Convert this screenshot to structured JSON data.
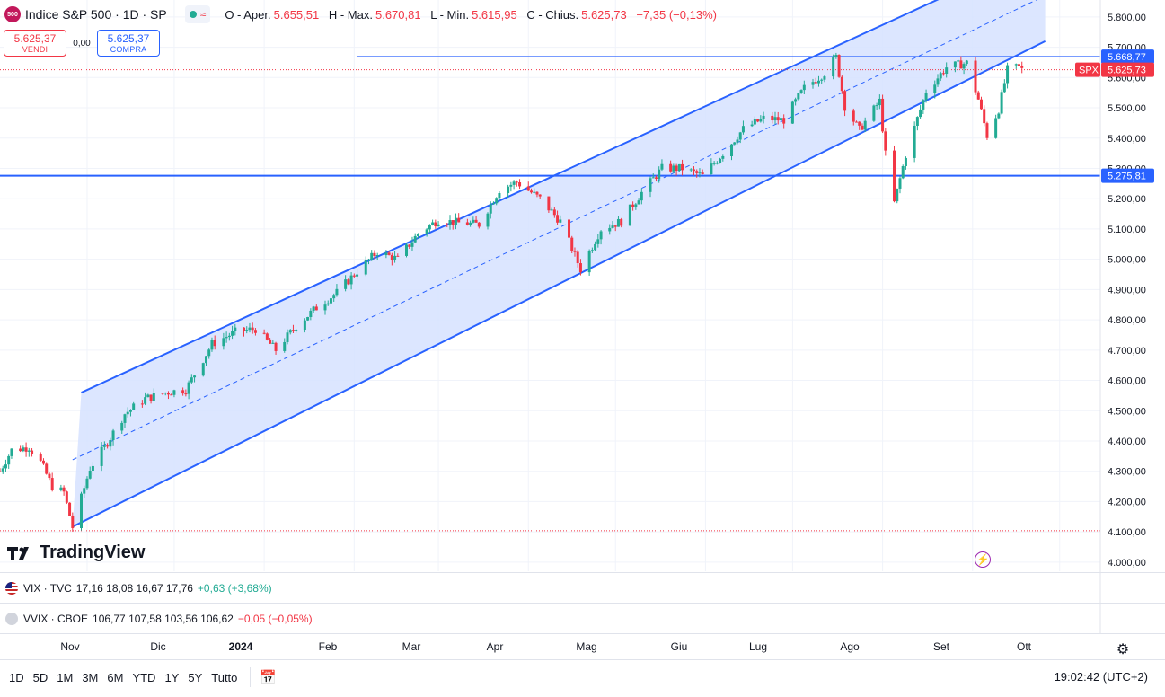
{
  "header": {
    "symbol_badge": "500",
    "title": "Indice S&P 500 · 1D · SP",
    "status_icon": "wave-icon",
    "ohlc": [
      {
        "label": "O - Aper.",
        "value": "5.655,51"
      },
      {
        "label": "H - Max.",
        "value": "5.670,81"
      },
      {
        "label": "L - Min.",
        "value": "5.615,95"
      },
      {
        "label": "C - Chius.",
        "value": "5.625,73"
      },
      {
        "label": "",
        "value": "−7,35 (−0,13%)"
      }
    ]
  },
  "trade": {
    "sell_price": "5.625,37",
    "sell_label": "VENDI",
    "spread": "0,00",
    "buy_price": "5.625,37",
    "buy_label": "COMPRA"
  },
  "price_axis": {
    "ticks": [
      "5.800,00",
      "5.700,00",
      "5.600,00",
      "5.500,00",
      "5.400,00",
      "5.300,00",
      "5.200,00",
      "5.100,00",
      "5.000,00",
      "4.900,00",
      "4.800,00",
      "4.700,00",
      "4.600,00",
      "4.500,00",
      "4.400,00",
      "4.300,00",
      "4.200,00",
      "4.100,00",
      "4.000,00"
    ],
    "tick_values": [
      5800,
      5700,
      5600,
      5500,
      5400,
      5300,
      5200,
      5100,
      5000,
      4900,
      4800,
      4700,
      4600,
      4500,
      4400,
      4300,
      4200,
      4100,
      4000
    ],
    "labels": [
      {
        "text": "5.668,77",
        "value": 5668.77,
        "color": "#2962ff"
      },
      {
        "text": "5.625,73",
        "value": 5625.73,
        "color": "#f23645",
        "tag": "SPX"
      },
      {
        "text": "5.275,81",
        "value": 5275.81,
        "color": "#2962ff"
      }
    ]
  },
  "time_axis": {
    "labels": [
      "Nov",
      "Dic",
      "2024",
      "Feb",
      "Mar",
      "Apr",
      "Mag",
      "Giu",
      "Lug",
      "Ago",
      "Set",
      "Ott"
    ]
  },
  "chart_data": {
    "type": "candlestick",
    "ylim": [
      3970,
      5850
    ],
    "x_range": [
      "2023-10-02",
      "2024-10-15"
    ],
    "last_close": 5625.73,
    "horizontal_lines": [
      5668.77,
      5275.81
    ],
    "dotted_levels": [
      5625.73,
      4103.78
    ],
    "channel": {
      "upper": {
        "start": [
          "2023-10-30",
          4560
        ],
        "end": [
          "2024-09-26",
          6020
        ]
      },
      "lower": {
        "start": [
          "2023-10-27",
          4117
        ],
        "end": [
          "2024-09-26",
          5720
        ]
      },
      "mid_dashed": {
        "start": [
          "2023-10-27",
          4338
        ],
        "end": [
          "2024-09-26",
          5870
        ]
      }
    },
    "close_series": [
      [
        "2023-10-02",
        4300
      ],
      [
        "2023-10-06",
        4370
      ],
      [
        "2023-10-12",
        4380
      ],
      [
        "2023-10-16",
        4330
      ],
      [
        "2023-10-20",
        4250
      ],
      [
        "2023-10-24",
        4230
      ],
      [
        "2023-10-27",
        4115
      ],
      [
        "2023-11-02",
        4310
      ],
      [
        "2023-11-07",
        4380
      ],
      [
        "2023-11-14",
        4490
      ],
      [
        "2023-11-21",
        4540
      ],
      [
        "2023-11-28",
        4560
      ],
      [
        "2023-12-05",
        4570
      ],
      [
        "2023-12-14",
        4720
      ],
      [
        "2023-12-22",
        4760
      ],
      [
        "2023-12-29",
        4770
      ],
      [
        "2024-01-05",
        4700
      ],
      [
        "2024-01-12",
        4780
      ],
      [
        "2024-01-19",
        4840
      ],
      [
        "2024-01-26",
        4890
      ],
      [
        "2024-02-02",
        4960
      ],
      [
        "2024-02-09",
        5025
      ],
      [
        "2024-02-16",
        5000
      ],
      [
        "2024-02-23",
        5085
      ],
      [
        "2024-03-01",
        5130
      ],
      [
        "2024-03-08",
        5120
      ],
      [
        "2024-03-15",
        5115
      ],
      [
        "2024-03-22",
        5230
      ],
      [
        "2024-03-28",
        5255
      ],
      [
        "2024-04-05",
        5200
      ],
      [
        "2024-04-12",
        5125
      ],
      [
        "2024-04-19",
        4967
      ],
      [
        "2024-04-26",
        5100
      ],
      [
        "2024-05-03",
        5125
      ],
      [
        "2024-05-10",
        5220
      ],
      [
        "2024-05-17",
        5300
      ],
      [
        "2024-05-24",
        5300
      ],
      [
        "2024-05-31",
        5275
      ],
      [
        "2024-06-07",
        5350
      ],
      [
        "2024-06-14",
        5430
      ],
      [
        "2024-06-21",
        5465
      ],
      [
        "2024-06-28",
        5460
      ],
      [
        "2024-07-05",
        5565
      ],
      [
        "2024-07-12",
        5615
      ],
      [
        "2024-07-16",
        5667
      ],
      [
        "2024-07-19",
        5505
      ],
      [
        "2024-07-24",
        5427
      ],
      [
        "2024-07-31",
        5522
      ],
      [
        "2024-08-02",
        5346
      ],
      [
        "2024-08-05",
        5186
      ],
      [
        "2024-08-09",
        5345
      ],
      [
        "2024-08-16",
        5554
      ],
      [
        "2024-08-23",
        5634
      ],
      [
        "2024-08-30",
        5648
      ],
      [
        "2024-09-03",
        5528
      ],
      [
        "2024-09-06",
        5408
      ],
      [
        "2024-09-10",
        5495
      ],
      [
        "2024-09-13",
        5626
      ],
      [
        "2024-09-17",
        5634
      ],
      [
        "2024-09-18",
        5625.73
      ]
    ]
  },
  "indicators": [
    {
      "symbol": "VIX · TVC",
      "values": "17,16  18,08  16,67  17,76",
      "change": "+0,63 (+3,68%)",
      "change_color": "#22ab94",
      "icon": "us-flag-icon"
    },
    {
      "symbol": "VVIX · CBOE",
      "values": "106,77  107,58  103,56  106,62",
      "change": "−0,05 (−0,05%)",
      "change_color": "#f23645",
      "icon": "vvix-icon"
    }
  ],
  "branding": {
    "logo_text": "TradingView"
  },
  "bottom_bar": {
    "ranges": [
      "1D",
      "5D",
      "1M",
      "3M",
      "6M",
      "YTD",
      "1Y",
      "5Y",
      "Tutto"
    ],
    "clock": "19:02:42 (UTC+2)"
  },
  "colors": {
    "up": "#22ab94",
    "down": "#f23645",
    "line": "#2962ff",
    "channel_fill": "#d6e2ff"
  }
}
